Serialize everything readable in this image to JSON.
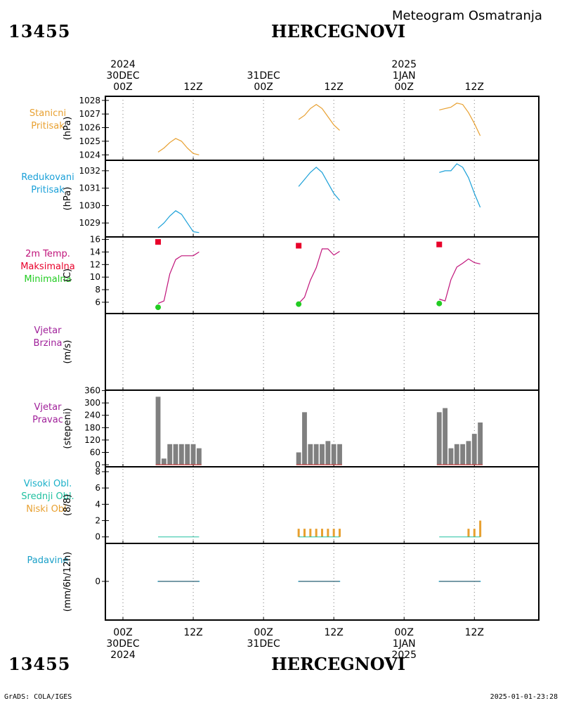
{
  "header": {
    "station_id": "13455",
    "station_name": "HERCEGNOVI",
    "chart_title": "Meteogram Osmatranja"
  },
  "footer": {
    "credit": "GrADS: COLA/IGES",
    "timestamp": "2025-01-01-23:28"
  },
  "time_axis": {
    "top_labels": [
      {
        "hour": 0,
        "lines": [
          "2024",
          "30DEC",
          "00Z"
        ]
      },
      {
        "hour": 12,
        "lines": [
          "12Z"
        ]
      },
      {
        "hour": 24,
        "lines": [
          "31DEC",
          "00Z"
        ]
      },
      {
        "hour": 36,
        "lines": [
          "12Z"
        ]
      },
      {
        "hour": 48,
        "lines": [
          "2025",
          "1JAN",
          "00Z"
        ]
      },
      {
        "hour": 60,
        "lines": [
          "12Z"
        ]
      }
    ],
    "bottom_labels": [
      {
        "hour": 0,
        "lines": [
          "00Z",
          "30DEC",
          "2024"
        ]
      },
      {
        "hour": 12,
        "lines": [
          "12Z"
        ]
      },
      {
        "hour": 24,
        "lines": [
          "00Z",
          "31DEC"
        ]
      },
      {
        "hour": 36,
        "lines": [
          "12Z"
        ]
      },
      {
        "hour": 48,
        "lines": [
          "00Z",
          "1JAN",
          "2025"
        ]
      },
      {
        "hour": 60,
        "lines": [
          "12Z"
        ]
      }
    ],
    "xlim": [
      -3,
      71
    ],
    "gridlines_hours": [
      0,
      12,
      24,
      36,
      48,
      60
    ]
  },
  "colors": {
    "stanicni": "#e8a030",
    "redukovani": "#1aa0d8",
    "temp_line": "#c0137a",
    "maksimalna": "#e8002a",
    "minimalna": "#22cc22",
    "vjetar": "#a0209a",
    "bars": "#808080",
    "bars_base": "#c83030",
    "visoki": "#1ab0c8",
    "srednji": "#20c0a0",
    "niski": "#e8a030",
    "padavine": "#1aa0c8",
    "padavine_line": "#4a7a8a"
  },
  "chart_data": [
    {
      "type": "line",
      "panel": "stanicni_pritisak",
      "labels": [
        "Stanicni",
        "Pritisak"
      ],
      "ylabel": "(hPa)",
      "ylim": [
        1023.6,
        1028.3
      ],
      "yticks": [
        1024,
        1025,
        1026,
        1027,
        1028
      ],
      "segments": [
        {
          "x": [
            6,
            7,
            8,
            9,
            10,
            11,
            12,
            13
          ],
          "y": [
            1024.2,
            1024.5,
            1024.9,
            1025.2,
            1025.0,
            1024.5,
            1024.1,
            1024.0
          ]
        },
        {
          "x": [
            30,
            31,
            32,
            33,
            34,
            35,
            36,
            37
          ],
          "y": [
            1026.6,
            1026.9,
            1027.4,
            1027.7,
            1027.4,
            1026.8,
            1026.2,
            1025.8
          ]
        },
        {
          "x": [
            54,
            55,
            56,
            57,
            58,
            59,
            60,
            61
          ],
          "y": [
            1027.3,
            1027.4,
            1027.5,
            1027.8,
            1027.7,
            1027.1,
            1026.3,
            1025.4
          ]
        }
      ]
    },
    {
      "type": "line",
      "panel": "redukovani_pritisak",
      "labels": [
        "Redukovani",
        "Pritisak"
      ],
      "ylabel": "(hPa)",
      "ylim": [
        1028.2,
        1032.6
      ],
      "yticks": [
        1029,
        1030,
        1031,
        1032
      ],
      "segments": [
        {
          "x": [
            6,
            7,
            8,
            9,
            10,
            11,
            12,
            13
          ],
          "y": [
            1028.7,
            1029.0,
            1029.4,
            1029.7,
            1029.5,
            1029.0,
            1028.5,
            1028.45
          ]
        },
        {
          "x": [
            30,
            31,
            32,
            33,
            34,
            35,
            36,
            37
          ],
          "y": [
            1031.1,
            1031.5,
            1031.9,
            1032.2,
            1031.9,
            1031.3,
            1030.7,
            1030.3
          ]
        },
        {
          "x": [
            54,
            55,
            56,
            57,
            58,
            59,
            60,
            61
          ],
          "y": [
            1031.9,
            1032.0,
            1032.0,
            1032.4,
            1032.2,
            1031.6,
            1030.7,
            1029.9
          ]
        }
      ]
    },
    {
      "type": "line",
      "panel": "temperatura",
      "labels": [
        "2m Temp.",
        "Maksimalna",
        "Minimalna"
      ],
      "ylabel": "(C)",
      "ylim": [
        4.2,
        16.4
      ],
      "yticks": [
        6,
        8,
        10,
        12,
        14,
        16
      ],
      "segments": [
        {
          "x": [
            6,
            7,
            8,
            9,
            10,
            11,
            12,
            13
          ],
          "y": [
            5.8,
            6.2,
            10.5,
            12.8,
            13.4,
            13.4,
            13.4,
            14.0
          ]
        },
        {
          "x": [
            30,
            31,
            32,
            33,
            34,
            35,
            36,
            37
          ],
          "y": [
            5.8,
            6.8,
            9.5,
            11.5,
            14.5,
            14.5,
            13.5,
            14.1
          ]
        },
        {
          "x": [
            54,
            55,
            56,
            57,
            58,
            59,
            60,
            61
          ],
          "y": [
            6.5,
            6.2,
            9.6,
            11.6,
            12.2,
            12.9,
            12.3,
            12.1
          ]
        }
      ],
      "maksimalna": [
        {
          "x": 6,
          "y": 15.6
        },
        {
          "x": 30,
          "y": 15.0
        },
        {
          "x": 54,
          "y": 15.2
        }
      ],
      "minimalna": [
        {
          "x": 6,
          "y": 5.2
        },
        {
          "x": 30,
          "y": 5.7
        },
        {
          "x": 54,
          "y": 5.8
        }
      ]
    },
    {
      "type": "line",
      "panel": "vjetar_brzina",
      "labels": [
        "Vjetar",
        "Brzina"
      ],
      "ylabel": "(m/s)",
      "segments": []
    },
    {
      "type": "bar",
      "panel": "vjetar_pravac",
      "labels": [
        "Vjetar",
        "Pravac"
      ],
      "ylabel": "(stepeni)",
      "ylim": [
        -10,
        362
      ],
      "yticks": [
        0,
        60,
        120,
        180,
        240,
        300,
        360
      ],
      "x": [
        6,
        7,
        8,
        9,
        10,
        11,
        12,
        13,
        30,
        31,
        32,
        33,
        34,
        35,
        36,
        37,
        54,
        55,
        56,
        57,
        58,
        59,
        60,
        61
      ],
      "values": [
        330,
        30,
        100,
        100,
        100,
        100,
        100,
        80,
        60,
        255,
        100,
        100,
        100,
        115,
        100,
        100,
        255,
        275,
        80,
        100,
        100,
        115,
        150,
        205
      ]
    },
    {
      "type": "bar",
      "panel": "oblacnost",
      "labels": [
        "Visoki Obl.",
        "Srednji Obl.",
        "Niski Obl."
      ],
      "ylabel": "(8/8)",
      "ylim": [
        -0.8,
        8.6
      ],
      "yticks": [
        0,
        2,
        4,
        6,
        8
      ],
      "x": [
        6,
        7,
        8,
        9,
        10,
        11,
        12,
        13,
        30,
        31,
        32,
        33,
        34,
        35,
        36,
        37,
        54,
        55,
        56,
        57,
        58,
        59,
        60,
        61
      ],
      "values": [
        0,
        0,
        0,
        0,
        0,
        0,
        0,
        0,
        1,
        1,
        1,
        1,
        1,
        1,
        1,
        1,
        0,
        0,
        0,
        0,
        0,
        1,
        1,
        2
      ]
    },
    {
      "type": "line",
      "panel": "padavine",
      "labels": [
        "Padavine"
      ],
      "ylabel": "(mm/6h/12h)",
      "yticks": [
        0
      ],
      "segments": [
        {
          "x": [
            6,
            13
          ],
          "y": [
            0,
            0
          ]
        },
        {
          "x": [
            30,
            37
          ],
          "y": [
            0,
            0
          ]
        },
        {
          "x": [
            54,
            61
          ],
          "y": [
            0,
            0
          ]
        }
      ]
    }
  ]
}
